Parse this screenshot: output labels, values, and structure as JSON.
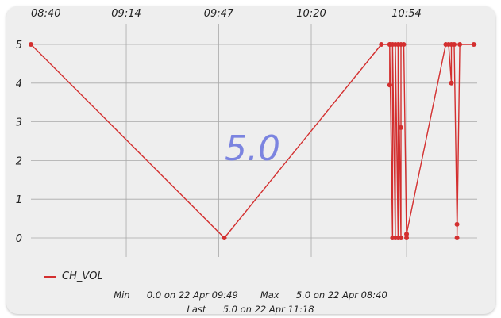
{
  "colors": {
    "series": "#d32f2f",
    "big_value": "#7b84e0",
    "grid": "#a9a9a9"
  },
  "chart_data": {
    "type": "line",
    "series": [
      {
        "name": "CH_VOL",
        "points": [
          [
            "08:40",
            5.0
          ],
          [
            "09:49",
            0.0
          ],
          [
            "10:45",
            5.0
          ],
          [
            "10:48",
            5.0
          ],
          [
            "10:48",
            3.95
          ],
          [
            "10:48",
            5.0
          ],
          [
            "10:49",
            0.0
          ],
          [
            "10:49",
            5.0
          ],
          [
            "10:50",
            0.0
          ],
          [
            "10:50",
            5.0
          ],
          [
            "10:51",
            0.0
          ],
          [
            "10:51",
            5.0
          ],
          [
            "10:52",
            0.0
          ],
          [
            "10:52",
            2.85
          ],
          [
            "10:52",
            5.0
          ],
          [
            "10:53",
            5.0
          ],
          [
            "10:54",
            0.0
          ],
          [
            "10:54",
            0.1
          ],
          [
            "11:08",
            5.0
          ],
          [
            "11:09",
            5.0
          ],
          [
            "11:10",
            4.0
          ],
          [
            "11:10",
            5.0
          ],
          [
            "11:11",
            5.0
          ],
          [
            "11:12",
            0.35
          ],
          [
            "11:12",
            0.0
          ],
          [
            "11:13",
            5.0
          ],
          [
            "11:18",
            5.0
          ]
        ]
      }
    ],
    "x_ticks": [
      "08:40",
      "09:14",
      "09:47",
      "10:20",
      "10:54"
    ],
    "y_ticks": [
      "5",
      "4",
      "3",
      "2",
      "1",
      "0"
    ],
    "ylim": [
      0,
      5
    ],
    "grid": true,
    "legend_position": "bottom-left",
    "current_value": "5.0"
  },
  "stats": {
    "min_label": "Min",
    "min_value": "0.0 on 22 Apr 09:49",
    "max_label": "Max",
    "max_value": "5.0 on 22 Apr 08:40",
    "last_label": "Last",
    "last_value": "5.0 on 22 Apr 11:18"
  }
}
